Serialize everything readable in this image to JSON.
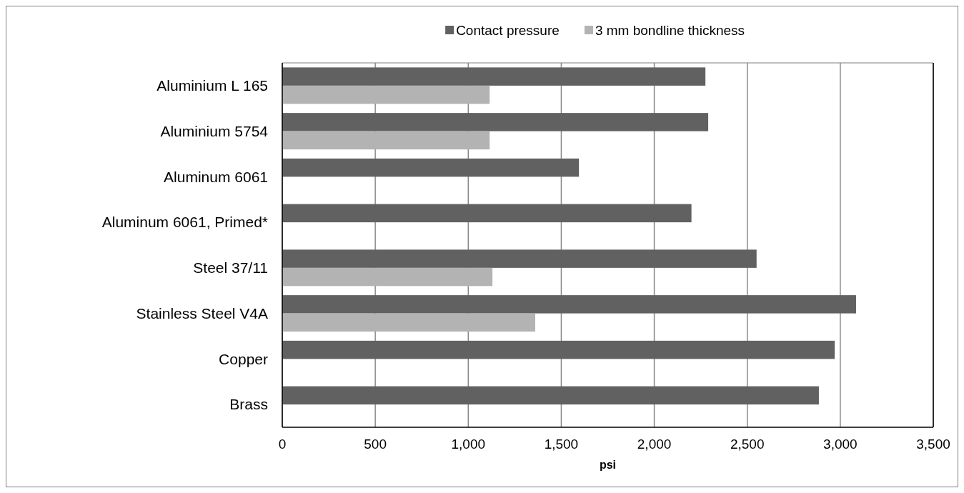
{
  "chart_data": {
    "type": "bar",
    "orientation": "horizontal",
    "xlabel": "psi",
    "categories": [
      "Aluminium L 165",
      "Aluminium 5754",
      "Aluminum 6061",
      "Aluminum 6061, Primed*",
      "Steel 37/11",
      "Stainless Steel V4A",
      "Copper",
      "Brass"
    ],
    "series": [
      {
        "name": "Contact pressure",
        "color": "#616161",
        "values": [
          2275,
          2290,
          1595,
          2200,
          2550,
          3085,
          2970,
          2885
        ]
      },
      {
        "name": "3 mm bondline thickness",
        "color": "#b3b3b3",
        "values": [
          1115,
          1115,
          null,
          null,
          1130,
          1360,
          null,
          null
        ]
      }
    ],
    "xlim": [
      0,
      3500
    ],
    "xticks": [
      {
        "value": 0,
        "label": "0"
      },
      {
        "value": 500,
        "label": "500"
      },
      {
        "value": 1000,
        "label": "1,000"
      },
      {
        "value": 1500,
        "label": "1,500"
      },
      {
        "value": 2000,
        "label": "2,000"
      },
      {
        "value": 2500,
        "label": "2,500"
      },
      {
        "value": 3000,
        "label": "3,000"
      },
      {
        "value": 3500,
        "label": "3,500"
      }
    ],
    "grid": "x",
    "legend": "top"
  }
}
